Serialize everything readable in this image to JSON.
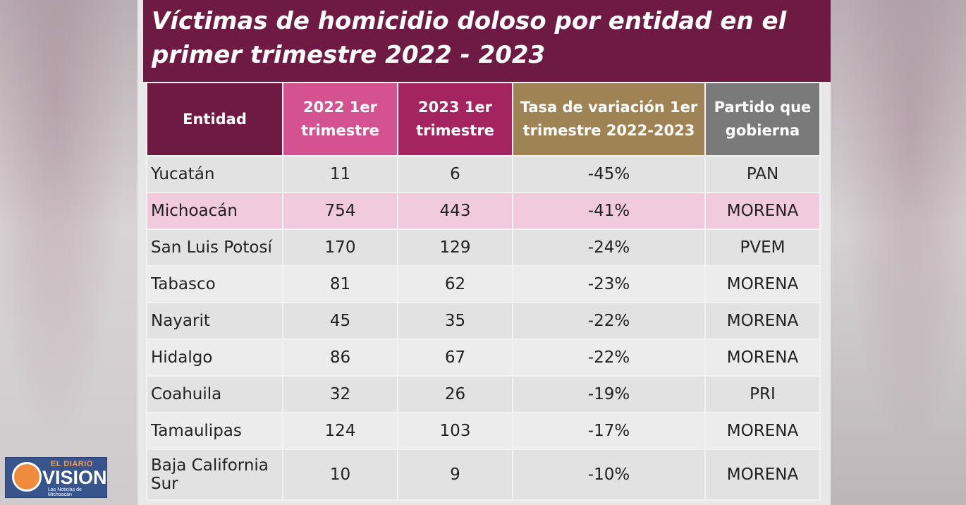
{
  "title": "Víctimas de homicidio doloso por entidad en el primer trimestre 2022 - 2023",
  "table": {
    "headers": {
      "entidad": "Entidad",
      "y2022": "2022 1er trimestre",
      "y2023": "2023 1er trimestre",
      "tasa": "Tasa de variación 1er trimestre 2022-2023",
      "partido": "Partido que gobierna"
    },
    "rows": [
      {
        "entidad": "Yucatán",
        "y2022": "11",
        "y2023": "6",
        "tasa": "-45%",
        "partido": "PAN"
      },
      {
        "entidad": "Michoacán",
        "y2022": "754",
        "y2023": "443",
        "tasa": "-41%",
        "partido": "MORENA"
      },
      {
        "entidad": "San Luis Potosí",
        "y2022": "170",
        "y2023": "129",
        "tasa": "-24%",
        "partido": "PVEM"
      },
      {
        "entidad": "Tabasco",
        "y2022": "81",
        "y2023": "62",
        "tasa": "-23%",
        "partido": "MORENA"
      },
      {
        "entidad": "Nayarit",
        "y2022": "45",
        "y2023": "35",
        "tasa": "-22%",
        "partido": "MORENA"
      },
      {
        "entidad": "Hidalgo",
        "y2022": "86",
        "y2023": "67",
        "tasa": "-22%",
        "partido": "MORENA"
      },
      {
        "entidad": "Coahuila",
        "y2022": "32",
        "y2023": "26",
        "tasa": "-19%",
        "partido": "PRI"
      },
      {
        "entidad": "Tamaulipas",
        "y2022": "124",
        "y2023": "103",
        "tasa": "-17%",
        "partido": "MORENA"
      },
      {
        "entidad": "Baja California Sur",
        "y2022": "10",
        "y2023": "9",
        "tasa": "-10%",
        "partido": "MORENA"
      }
    ]
  },
  "colors": {
    "title_bg": "#6e1a42",
    "header_2022": "#d4528f",
    "header_2023": "#a3245f",
    "header_tasa": "#a08355",
    "header_partido": "#7a7a7a",
    "highlight_row": "#f2cade"
  },
  "logo": {
    "top": "EL DIARIO",
    "main": "VISION",
    "sub": "Las Noticias de Michoacán"
  }
}
